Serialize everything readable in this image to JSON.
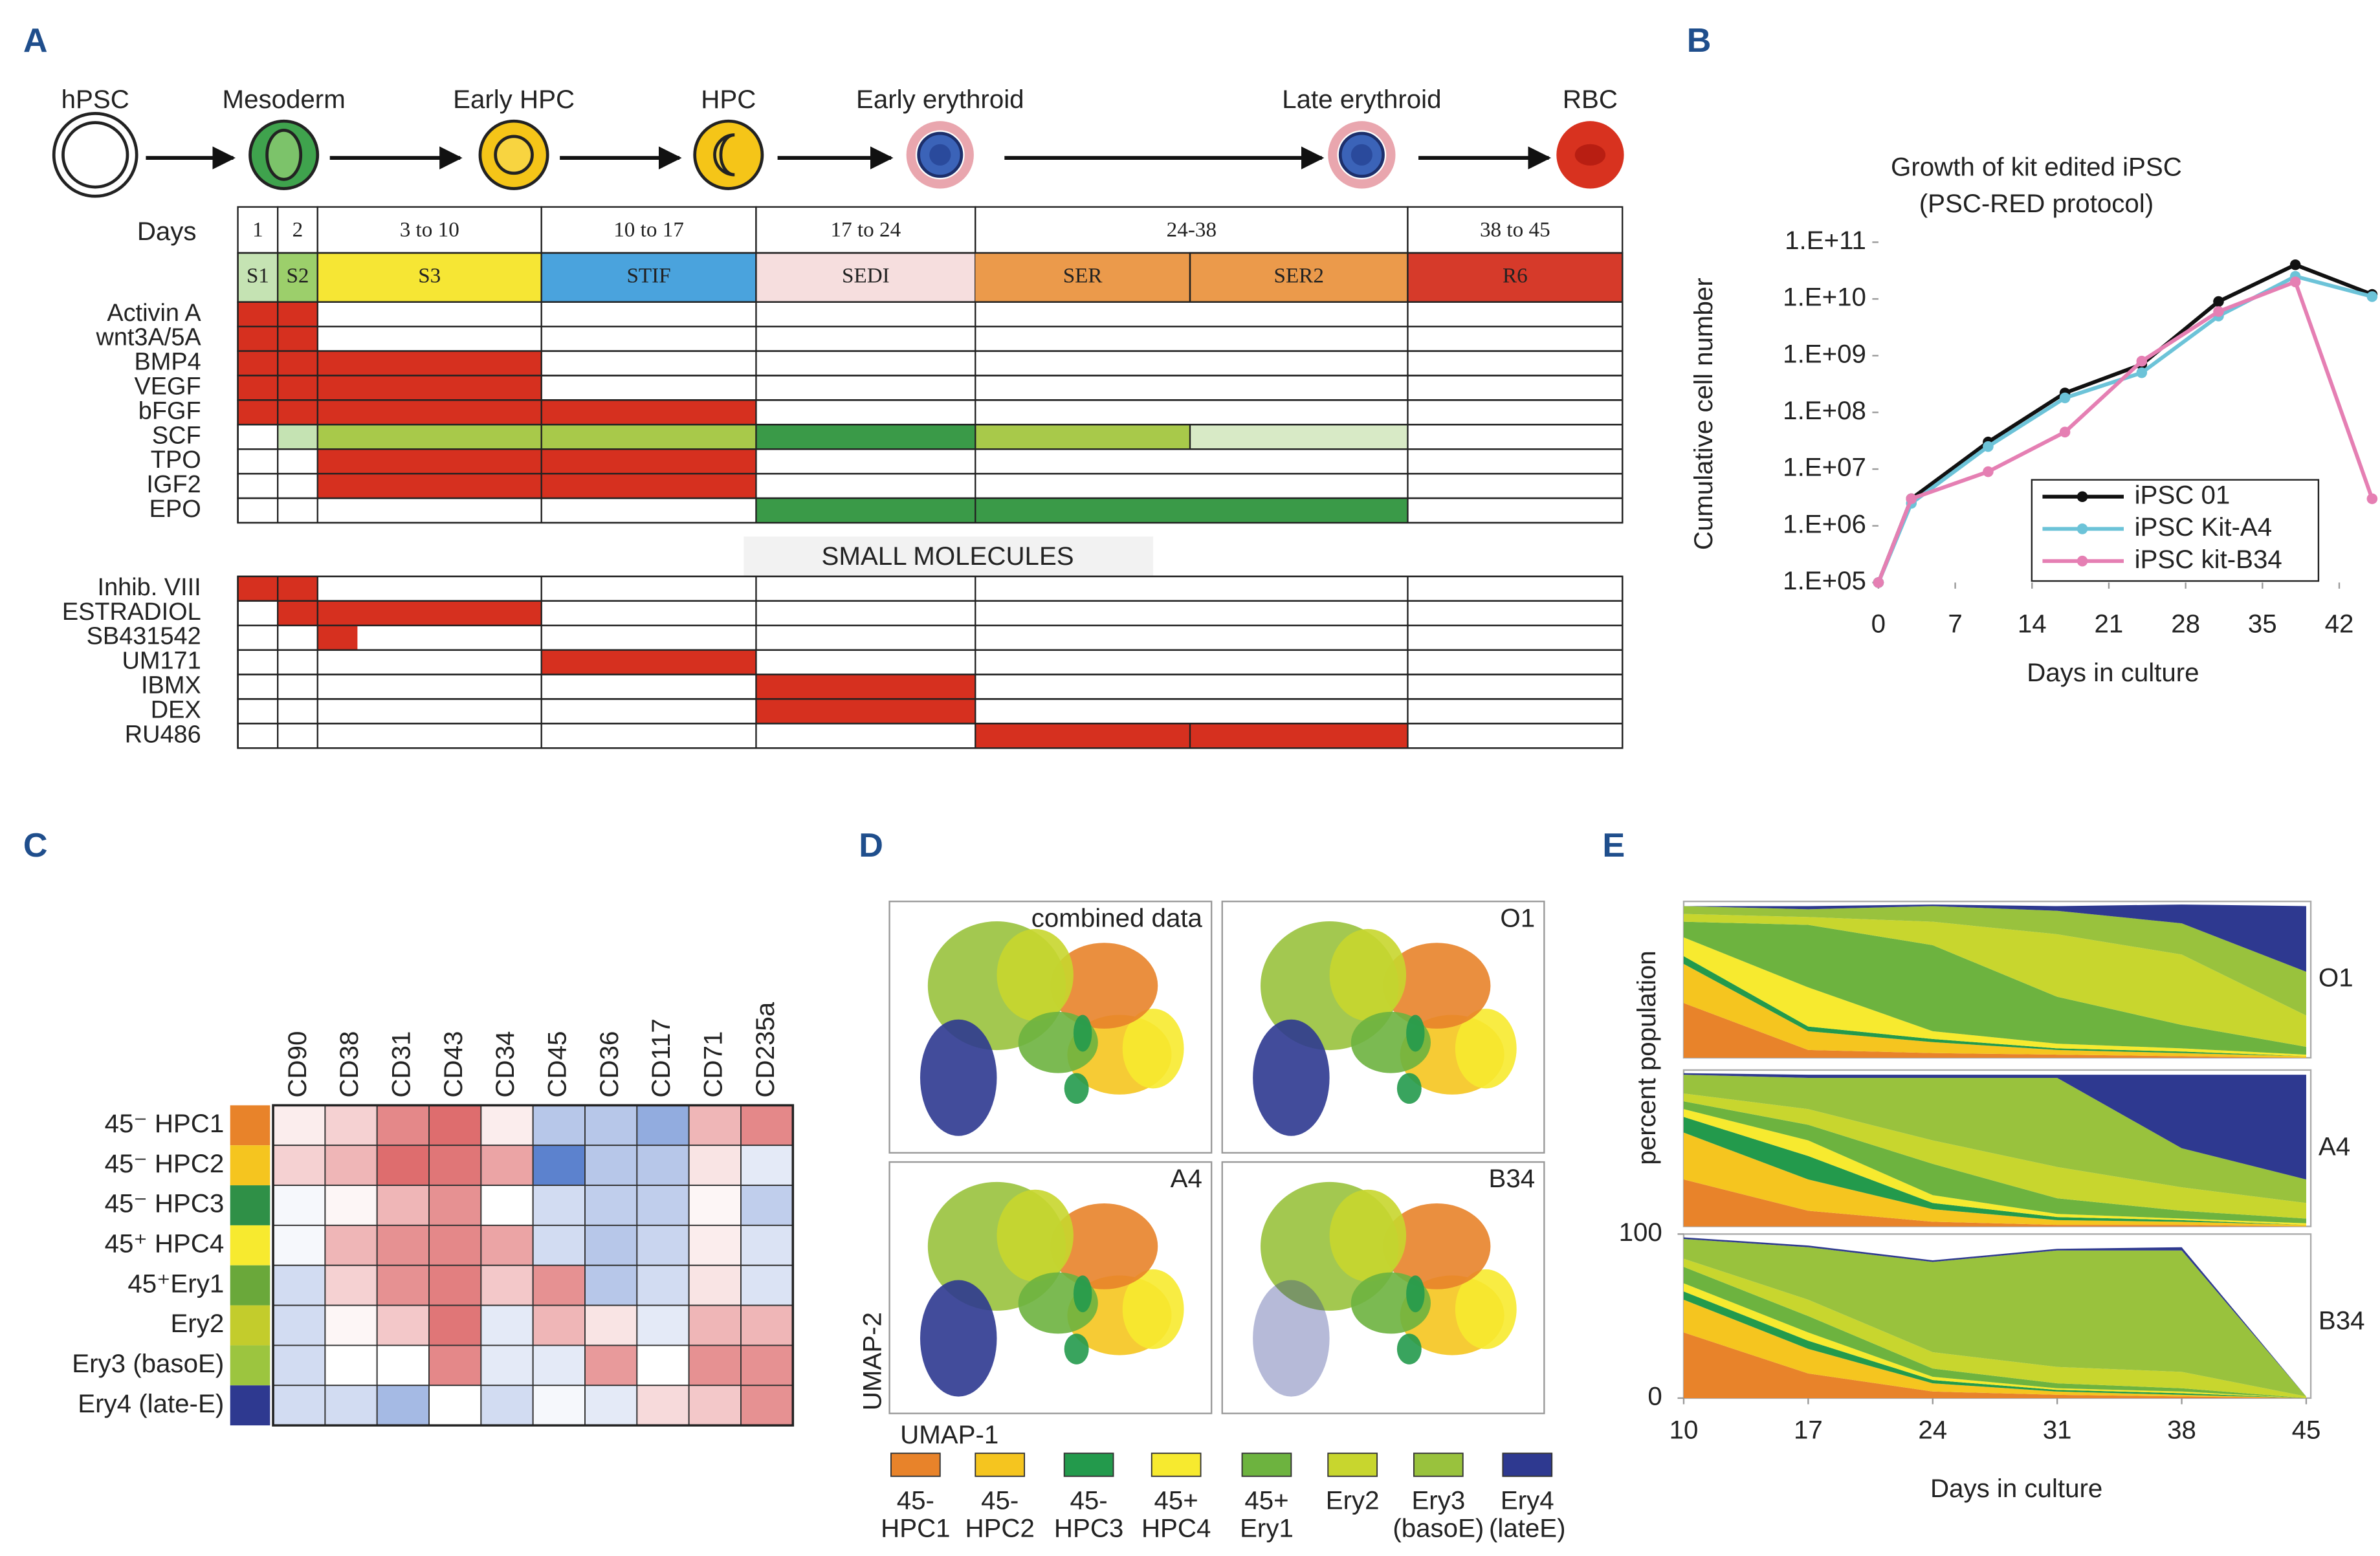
{
  "panel_labels": [
    "A",
    "B",
    "C",
    "D",
    "E"
  ],
  "protocol": {
    "stages": [
      "hPSC",
      "Mesoderm",
      "Early HPC",
      "HPC",
      "Early erythroid",
      "Late erythroid",
      "RBC"
    ],
    "days_label": "Days",
    "day_ranges": [
      "1",
      "2",
      "3 to 10",
      "10 to 17",
      "17 to 24",
      "24-38",
      "38 to 45"
    ],
    "media": [
      "S1",
      "S2",
      "S3",
      "STIF",
      "SEDI",
      "SER",
      "SER2",
      "R6"
    ],
    "factors": [
      "Activin A",
      "wnt3A/5A",
      "BMP4",
      "VEGF",
      "bFGF",
      "SCF",
      "TPO",
      "IGF2",
      "EPO"
    ],
    "small_molecules_title": "SMALL MOLECULES",
    "small_molecules": [
      "Inhib. VIII",
      "ESTRADIOL",
      "SB431542",
      "UM171",
      "IBMX",
      "DEX",
      "RU486"
    ]
  },
  "chart_data": [
    {
      "type": "line",
      "title": "Growth of kit edited iPSC",
      "subtitle": "(PSC-RED protocol)",
      "x_label": "Days in culture",
      "y_label": "Cumulative cell number",
      "x": [
        0,
        3,
        10,
        17,
        24,
        31,
        38,
        45
      ],
      "series": [
        {
          "name": "iPSC 01",
          "color": "#111111",
          "values": [
            100000.0,
            3000000.0,
            30000000.0,
            220000000.0,
            700000000.0,
            9000000000.0,
            40000000000.0,
            12000000000.0
          ]
        },
        {
          "name": "iPSC Kit-A4",
          "color": "#6cc3d8",
          "values": [
            100000.0,
            2500000.0,
            25000000.0,
            180000000.0,
            500000000.0,
            5000000000.0,
            25000000000.0,
            11000000000.0
          ]
        },
        {
          "name": "iPSC kit-B34",
          "color": "#e57fb3",
          "values": [
            100000.0,
            3000000.0,
            9000000.0,
            45000000.0,
            800000000.0,
            6000000000.0,
            20000000000.0,
            3000000.0
          ]
        }
      ],
      "xlim": [
        0,
        45
      ],
      "xticks": [
        0,
        7,
        14,
        21,
        28,
        35,
        42
      ],
      "ylim": [
        100000.0,
        100000000000.0
      ],
      "yticks": [
        {
          "value": 100000.0,
          "label": "1.E+05"
        },
        {
          "value": 1000000.0,
          "label": "1.E+06"
        },
        {
          "value": 10000000.0,
          "label": "1.E+07"
        },
        {
          "value": 100000000.0,
          "label": "1.E+08"
        },
        {
          "value": 1000000000.0,
          "label": "1.E+09"
        },
        {
          "value": 10000000000.0,
          "label": "1.E+10"
        },
        {
          "value": 100000000000.0,
          "label": "1.E+11"
        }
      ],
      "log_y": true,
      "legend": "lower right"
    },
    {
      "type": "heatmap",
      "x_categories": [
        "CD90",
        "CD38",
        "CD31",
        "CD43",
        "CD34",
        "CD45",
        "CD36",
        "CD117",
        "CD71",
        "CD235a"
      ],
      "y_categories": [
        "45⁻ HPC1",
        "45⁻ HPC2",
        "45⁻ HPC3",
        "45⁺ HPC4",
        "45⁺Ery1",
        "Ery2",
        "Ery3 (basoE)",
        "Ery4 (late-E)"
      ],
      "row_colors": [
        "#e8832a",
        "#f5c51f",
        "#2f9047",
        "#f7ea2f",
        "#6aa83a",
        "#c3cc2c",
        "#9cc53f",
        "#2e3990"
      ],
      "values": [
        [
          0.2,
          0.5,
          1.3,
          1.6,
          0.2,
          -0.8,
          -0.8,
          -1.2,
          0.8,
          1.3
        ],
        [
          0.5,
          0.8,
          1.6,
          1.5,
          1.0,
          -1.8,
          -0.8,
          -0.8,
          0.3,
          -0.3
        ],
        [
          -0.1,
          0.1,
          0.8,
          1.2,
          0,
          -0.5,
          -0.7,
          -0.7,
          0.1,
          -0.7
        ],
        [
          -0.1,
          0.8,
          1.2,
          1.3,
          1.0,
          -0.5,
          -0.8,
          -0.6,
          0.2,
          -0.4
        ],
        [
          -0.5,
          0.5,
          1.2,
          1.4,
          0.6,
          1.2,
          -0.8,
          -0.5,
          0.3,
          -0.4
        ],
        [
          -0.5,
          0.1,
          0.6,
          1.5,
          -0.3,
          0.8,
          0.3,
          -0.3,
          0.8,
          0.8
        ],
        [
          -0.5,
          0,
          0,
          1.3,
          -0.3,
          -0.3,
          1.1,
          0,
          1.2,
          1.2
        ],
        [
          -0.5,
          -0.5,
          -1.0,
          0,
          -0.5,
          -0.1,
          -0.3,
          0.4,
          0.6,
          1.2
        ]
      ],
      "zlim": [
        -2,
        2
      ]
    },
    {
      "type": "stacked_area",
      "title": "O1",
      "x": [
        10,
        17,
        24,
        31,
        38,
        45
      ],
      "xlim": [
        10,
        45
      ],
      "ylim": [
        0,
        100
      ],
      "series": [
        {
          "color": "#e8832a",
          "values": [
            35,
            5,
            3,
            2,
            1,
            0
          ]
        },
        {
          "color": "#f5c51f",
          "values": [
            25,
            12,
            7,
            3,
            2,
            1
          ]
        },
        {
          "color": "#239a4c",
          "values": [
            5,
            3,
            2,
            1,
            1,
            0
          ]
        },
        {
          "color": "#f7ea2f",
          "values": [
            12,
            25,
            5,
            3,
            2,
            1
          ]
        },
        {
          "color": "#6db33f",
          "values": [
            10,
            40,
            55,
            30,
            15,
            5
          ]
        },
        {
          "color": "#c8d62e",
          "values": [
            5,
            5,
            15,
            40,
            45,
            20
          ]
        },
        {
          "color": "#99c23d",
          "values": [
            5,
            5,
            10,
            15,
            20,
            28
          ]
        },
        {
          "color": "#2e3990",
          "values": [
            0,
            2,
            1,
            3,
            12,
            42
          ]
        }
      ]
    },
    {
      "type": "stacked_area",
      "title": "A4",
      "x": [
        10,
        17,
        24,
        31,
        38,
        45
      ],
      "xlim": [
        10,
        45
      ],
      "ylim": [
        0,
        100
      ],
      "series": [
        {
          "color": "#e8832a",
          "values": [
            30,
            10,
            3,
            1,
            1,
            0
          ]
        },
        {
          "color": "#f5c51f",
          "values": [
            30,
            20,
            8,
            3,
            2,
            1
          ]
        },
        {
          "color": "#239a4c",
          "values": [
            10,
            15,
            4,
            2,
            1,
            0
          ]
        },
        {
          "color": "#f7ea2f",
          "values": [
            5,
            10,
            5,
            2,
            1,
            1
          ]
        },
        {
          "color": "#6db33f",
          "values": [
            5,
            10,
            20,
            10,
            5,
            3
          ]
        },
        {
          "color": "#c8d62e",
          "values": [
            5,
            10,
            15,
            20,
            15,
            10
          ]
        },
        {
          "color": "#99c23d",
          "values": [
            12,
            20,
            40,
            57,
            25,
            15
          ]
        },
        {
          "color": "#2e3990",
          "values": [
            1,
            2,
            2,
            2,
            47,
            67
          ]
        }
      ]
    },
    {
      "type": "stacked_area",
      "title": "B34",
      "x": [
        10,
        17,
        24,
        31,
        38,
        45
      ],
      "xlim": [
        10,
        45
      ],
      "ylim": [
        0,
        100
      ],
      "xticks": [
        10,
        17,
        24,
        31,
        38,
        45
      ],
      "yticks": [
        0,
        100
      ],
      "x_label": "Days in culture",
      "y_label": "percent population",
      "series": [
        {
          "color": "#e8832a",
          "values": [
            40,
            15,
            4,
            2,
            1,
            0
          ]
        },
        {
          "color": "#f5c51f",
          "values": [
            20,
            15,
            5,
            2,
            1,
            0
          ]
        },
        {
          "color": "#239a4c",
          "values": [
            5,
            5,
            2,
            1,
            1,
            0
          ]
        },
        {
          "color": "#f7ea2f",
          "values": [
            5,
            5,
            2,
            1,
            1,
            0
          ]
        },
        {
          "color": "#6db33f",
          "values": [
            10,
            10,
            5,
            3,
            2,
            0
          ]
        },
        {
          "color": "#c8d62e",
          "values": [
            5,
            10,
            10,
            10,
            10,
            1
          ]
        },
        {
          "color": "#99c23d",
          "values": [
            12,
            32,
            55,
            71,
            74,
            0
          ]
        },
        {
          "color": "#2e3990",
          "values": [
            1,
            1,
            1,
            1,
            2,
            0
          ]
        }
      ]
    }
  ],
  "umap": {
    "panels": [
      "combined data",
      "O1",
      "A4",
      "B34"
    ],
    "x_label": "UMAP-1",
    "y_label": "UMAP-2",
    "legend": [
      {
        "lines": [
          "45-",
          "HPC1"
        ],
        "color": "#e8832a"
      },
      {
        "lines": [
          "45-",
          "HPC2"
        ],
        "color": "#f5c51f"
      },
      {
        "lines": [
          "45-",
          "HPC3"
        ],
        "color": "#239a4c"
      },
      {
        "lines": [
          "45+",
          "HPC4"
        ],
        "color": "#f7ea2f"
      },
      {
        "lines": [
          "45+",
          "Ery1"
        ],
        "color": "#6db33f"
      },
      {
        "lines": [
          "Ery2"
        ],
        "color": "#c8d62e"
      },
      {
        "lines": [
          "Ery3",
          "(basoE)"
        ],
        "color": "#99c23d"
      },
      {
        "lines": [
          "Ery4",
          "(lateE)"
        ],
        "color": "#2e3990"
      }
    ]
  }
}
